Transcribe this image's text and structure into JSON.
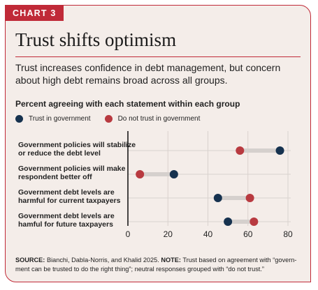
{
  "badge": "CHART 3",
  "title": "Trust shifts optimism",
  "subtitle": "Trust increases confidence in debt management, but concern about high debt remains broad across all groups.",
  "section_label": "Percent agreeing with each statement within each group",
  "colors": {
    "trust": "#16324f",
    "distrust": "#b83a40",
    "connector": "#d5d0cd",
    "accent": "#c02a38"
  },
  "chart_data": {
    "type": "dumbbell",
    "title": "Percent agreeing with each statement within each group",
    "xlim": [
      0,
      80
    ],
    "xticks": [
      "0",
      "20",
      "40",
      "60",
      "80"
    ],
    "grid": true,
    "legend_position": "top-left",
    "series": [
      {
        "name": "Trust in government",
        "values": [
          76,
          23,
          45,
          50
        ]
      },
      {
        "name": "Do not trust in government",
        "values": [
          56,
          6,
          61,
          63
        ]
      }
    ],
    "categories": [
      [
        "Government policies will stabilize",
        "or reduce the debt level"
      ],
      [
        "Government policies will make",
        "respondent better off"
      ],
      [
        "Government debt levels are",
        "harmful for current taxpayers"
      ],
      [
        "Government debt levels are",
        "hamful for future taxpayers"
      ]
    ]
  },
  "footer": {
    "source_label": "SOURCE:",
    "source_text": "Bianchi, Dabla-Norris, and Khalid 2025.",
    "note_label": "NOTE:",
    "note_text": "Trust based on agreement with “govern­ment can be trusted to do the right thing”; neutral responses grouped with “do not trust.”"
  }
}
